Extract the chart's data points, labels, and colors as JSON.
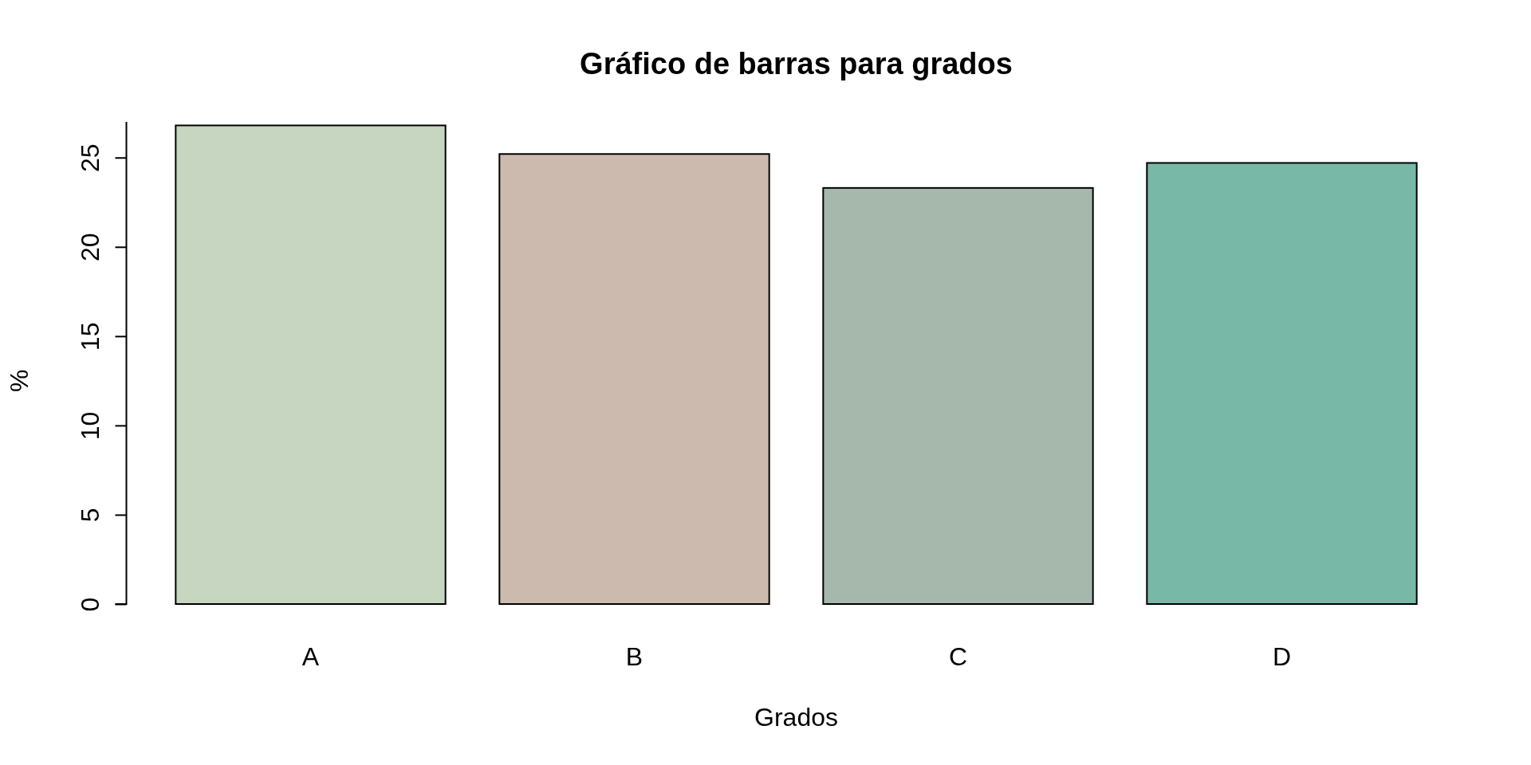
{
  "chart_data": {
    "type": "bar",
    "title": "Gráfico de barras para grados",
    "xlabel": "Grados",
    "ylabel": "%",
    "categories": [
      "A",
      "B",
      "C",
      "D"
    ],
    "values": [
      26.8,
      25.2,
      23.3,
      24.7
    ],
    "colors": [
      "#c6d6c0",
      "#cdbaae",
      "#a5b8ab",
      "#77b8a6"
    ],
    "ylim": [
      0,
      27
    ],
    "yticks": [
      0,
      5,
      10,
      15,
      20,
      25
    ]
  }
}
